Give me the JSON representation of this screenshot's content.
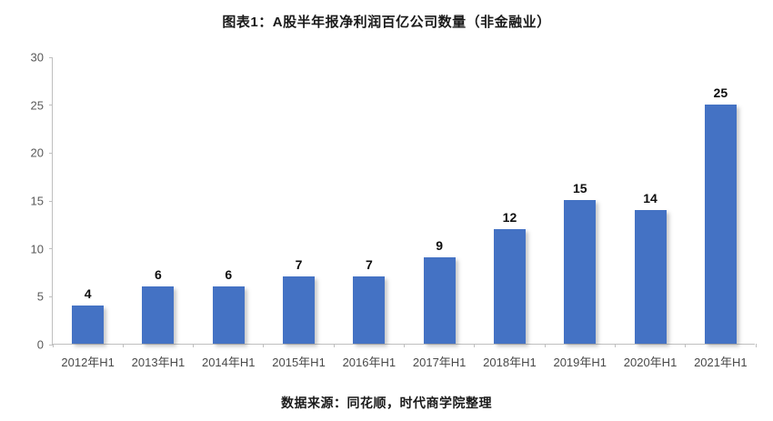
{
  "chart_data": {
    "type": "bar",
    "title": "图表1：A股半年报净利润百亿公司数量（非金融业）",
    "source_note": "数据来源：同花顺，时代商学院整理",
    "categories": [
      "2012年H1",
      "2013年H1",
      "2014年H1",
      "2015年H1",
      "2016年H1",
      "2017年H1",
      "2018年H1",
      "2019年H1",
      "2020年H1",
      "2021年H1"
    ],
    "values": [
      4,
      6,
      6,
      7,
      7,
      9,
      12,
      15,
      14,
      25
    ],
    "xlabel": "",
    "ylabel": "",
    "ylim": [
      0,
      30
    ],
    "yticks": [
      0,
      5,
      10,
      15,
      20,
      25,
      30
    ],
    "grid": false,
    "legend": false,
    "data_labels": true,
    "bar_color": "#4472C4",
    "axis_color": "#BFBFBF",
    "tick_label_color": "#595959",
    "data_label_color": "#0D0D0D"
  }
}
